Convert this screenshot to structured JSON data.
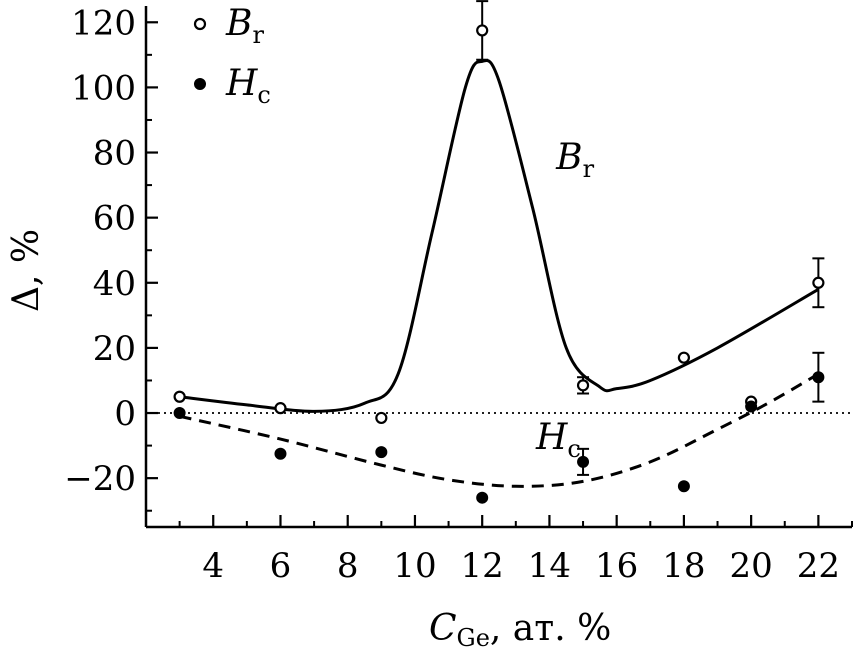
{
  "chart_data": {
    "type": "scatter",
    "xlabel": {
      "main": "C",
      "sub": "Ge",
      "rest": ", ат. %"
    },
    "ylabel": "Δ, %",
    "xlim": [
      2,
      23
    ],
    "ylim": [
      -35,
      125
    ],
    "xticks": [
      4,
      6,
      8,
      10,
      12,
      14,
      16,
      18,
      20,
      22
    ],
    "yticks": [
      -20,
      0,
      20,
      40,
      60,
      80,
      100,
      120
    ],
    "xtick_labels": [
      "4",
      "6",
      "8",
      "10",
      "12",
      "14",
      "16",
      "18",
      "20",
      "22"
    ],
    "ytick_labels": [
      "−20",
      "0",
      "20",
      "40",
      "60",
      "80",
      "100",
      "120"
    ],
    "zero_line": "dotted",
    "legend_position": "top-left",
    "series": [
      {
        "name": {
          "main": "B",
          "sub": "r"
        },
        "marker": "open-circle",
        "x": [
          3,
          6,
          9,
          12,
          15,
          18,
          20,
          22
        ],
        "y": [
          5,
          1.5,
          -1.5,
          117.5,
          8.5,
          17,
          3.5,
          40
        ],
        "err": [
          0,
          0,
          0,
          9,
          2.5,
          0,
          0,
          7.5
        ],
        "fit": {
          "style": "solid",
          "x": [
            3,
            5,
            7,
            8.5,
            9.5,
            10.5,
            11.5,
            12,
            12.5,
            13.5,
            14.5,
            15.5,
            16,
            17,
            19,
            22
          ],
          "y": [
            5,
            2.5,
            0.5,
            3,
            12,
            55,
            100,
            108,
            102,
            63,
            20,
            8,
            7.5,
            10,
            20,
            38
          ]
        },
        "curve_label": {
          "main": "B",
          "sub": "r",
          "x": 14.2,
          "y": 75
        }
      },
      {
        "name": {
          "main": "H",
          "sub": "c"
        },
        "marker": "filled-circle",
        "x": [
          3,
          6,
          9,
          12,
          15,
          18,
          20,
          22
        ],
        "y": [
          0,
          -12.5,
          -12,
          -26,
          -15,
          -22.5,
          2,
          11
        ],
        "err": [
          0,
          0,
          0,
          0,
          4,
          0,
          0,
          7.5
        ],
        "fit": {
          "style": "dashed",
          "x": [
            3,
            6,
            9,
            11,
            13,
            15,
            17,
            19,
            20.5,
            22
          ],
          "y": [
            -1,
            -8,
            -16,
            -20.5,
            -22.5,
            -21,
            -15,
            -5,
            3,
            12
          ]
        },
        "curve_label": {
          "main": "H",
          "sub": "c",
          "x": 13.6,
          "y": -11
        }
      }
    ]
  }
}
